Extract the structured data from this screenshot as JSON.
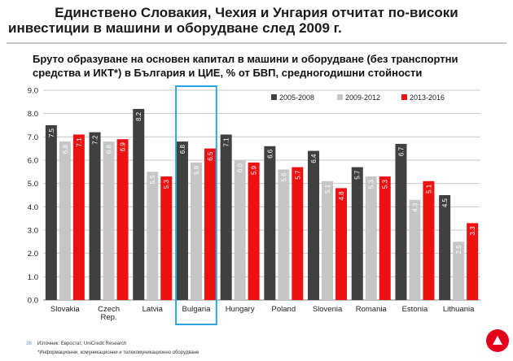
{
  "header": {
    "title_line1": "Единствено Словакия, Чехия и Унгария отчитат по-високи",
    "title_line2": "инвестиции в машини и оборудване след 2009 г."
  },
  "chart_data": {
    "type": "bar",
    "title_line1": "Бруто образуване на основен капитал в машини и оборудване (без транспортни",
    "title_line2": "средства и ИКТ*) в България и ЦИЕ, % от БВП, средногодишни стойности",
    "categories": [
      "Slovakia",
      "Czech Rep.",
      "Latvia",
      "Bulgaria",
      "Hungary",
      "Poland",
      "Slovenia",
      "Romania",
      "Estonia",
      "Lithuania"
    ],
    "series": [
      {
        "name": "2005-2008",
        "color": "#404040",
        "values": [
          7.5,
          7.2,
          8.2,
          6.8,
          7.1,
          6.6,
          6.4,
          5.7,
          6.7,
          4.5
        ]
      },
      {
        "name": "2009-2012",
        "color": "#c6c6c6",
        "values": [
          6.8,
          6.8,
          5.5,
          5.9,
          6.0,
          5.6,
          5.1,
          5.3,
          4.3,
          2.5
        ]
      },
      {
        "name": "2013-2016",
        "color": "#ee1111",
        "values": [
          7.1,
          6.9,
          5.3,
          6.5,
          5.9,
          5.7,
          4.8,
          5.3,
          5.1,
          3.3
        ]
      }
    ],
    "ylim": [
      0,
      9
    ],
    "yticks": [
      "0.0",
      "1.0",
      "2.0",
      "3.0",
      "4.0",
      "5.0",
      "6.0",
      "7.0",
      "8.0",
      "9.0"
    ],
    "grid": true,
    "legend_position": "top-right",
    "highlight_category": "Bulgaria",
    "highlight_color": "#2aa6e0"
  },
  "footer": {
    "page_number": "38",
    "source": "Източник: Евростат, UniCredit Research",
    "note": "*Информационни, комуникационни и телекомуникационно оборудване"
  },
  "logo_icon": "unicredit-logo"
}
